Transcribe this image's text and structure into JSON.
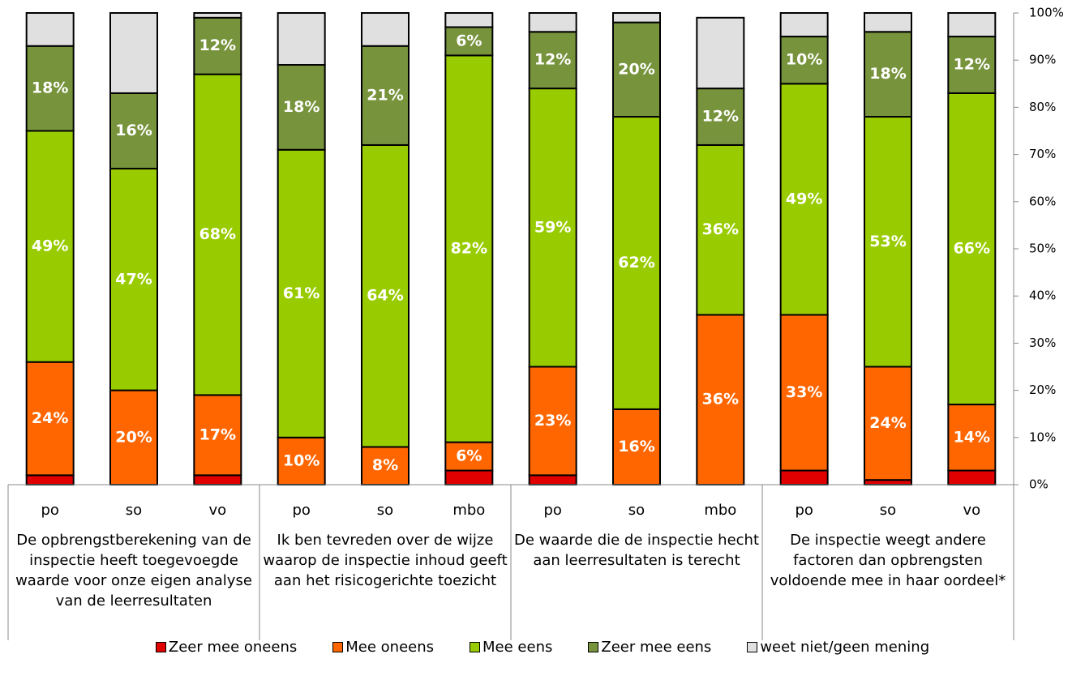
{
  "chart_data": {
    "type": "stacked-bar",
    "categories": [
      "po",
      "so",
      "vo",
      "po",
      "so",
      "mbo",
      "po",
      "so",
      "mbo",
      "po",
      "so",
      "vo"
    ],
    "groups": [
      "De opbrengstberekening van de inspectie heeft toegevoegde waarde voor onze eigen analyse van de leerresultaten",
      "Ik ben tevreden over de wijze waarop de inspectie inhoud geeft aan het risicogerichte toezicht",
      "De waarde die de inspectie hecht aan leerresultaten is terecht",
      "De inspectie weegt andere factoren dan opbrengsten voldoende mee in haar oordeel*"
    ],
    "series": [
      {
        "name": "Zeer mee oneens",
        "color": "#e00000",
        "values": [
          2,
          0,
          2,
          0,
          0,
          3,
          2,
          0,
          0,
          3,
          1,
          3
        ]
      },
      {
        "name": "Mee oneens",
        "color": "#ff6600",
        "values": [
          24,
          20,
          17,
          10,
          8,
          6,
          23,
          16,
          36,
          33,
          24,
          14
        ],
        "value_labels": [
          "24%",
          "20%",
          "17%",
          "10%",
          "8%",
          "6%",
          "23%",
          "16%",
          "36%",
          "33%",
          "24%",
          "14%"
        ]
      },
      {
        "name": "Mee eens",
        "color": "#99cc00",
        "values": [
          49,
          47,
          68,
          61,
          64,
          82,
          59,
          62,
          36,
          49,
          53,
          66
        ],
        "value_labels": [
          "49%",
          "47%",
          "68%",
          "61%",
          "64%",
          "82%",
          "59%",
          "62%",
          "36%",
          "49%",
          "53%",
          "66%"
        ]
      },
      {
        "name": "Zeer mee eens",
        "color": "#77933c",
        "values": [
          18,
          16,
          12,
          18,
          21,
          6,
          12,
          20,
          12,
          10,
          18,
          12
        ],
        "value_labels": [
          "18%",
          "16%",
          "12%",
          "18%",
          "21%",
          "6%",
          "12%",
          "20%",
          "12%",
          "10%",
          "18%",
          "12%"
        ]
      },
      {
        "name": "weet niet/geen mening",
        "color": "#e0e0e0",
        "values": [
          7,
          17,
          1,
          11,
          7,
          3,
          4,
          2,
          15,
          5,
          4,
          5
        ]
      }
    ],
    "ylim": [
      0,
      100
    ],
    "yticks": [
      {
        "value": 0,
        "label": "0%"
      },
      {
        "value": 10,
        "label": "10%"
      },
      {
        "value": 20,
        "label": "20%"
      },
      {
        "value": 30,
        "label": "30%"
      },
      {
        "value": 40,
        "label": "40%"
      },
      {
        "value": 50,
        "label": "50%"
      },
      {
        "value": 60,
        "label": "60%"
      },
      {
        "value": 70,
        "label": "70%"
      },
      {
        "value": 80,
        "label": "80%"
      },
      {
        "value": 90,
        "label": "90%"
      },
      {
        "value": 100,
        "label": "100%"
      }
    ],
    "grid": false
  }
}
